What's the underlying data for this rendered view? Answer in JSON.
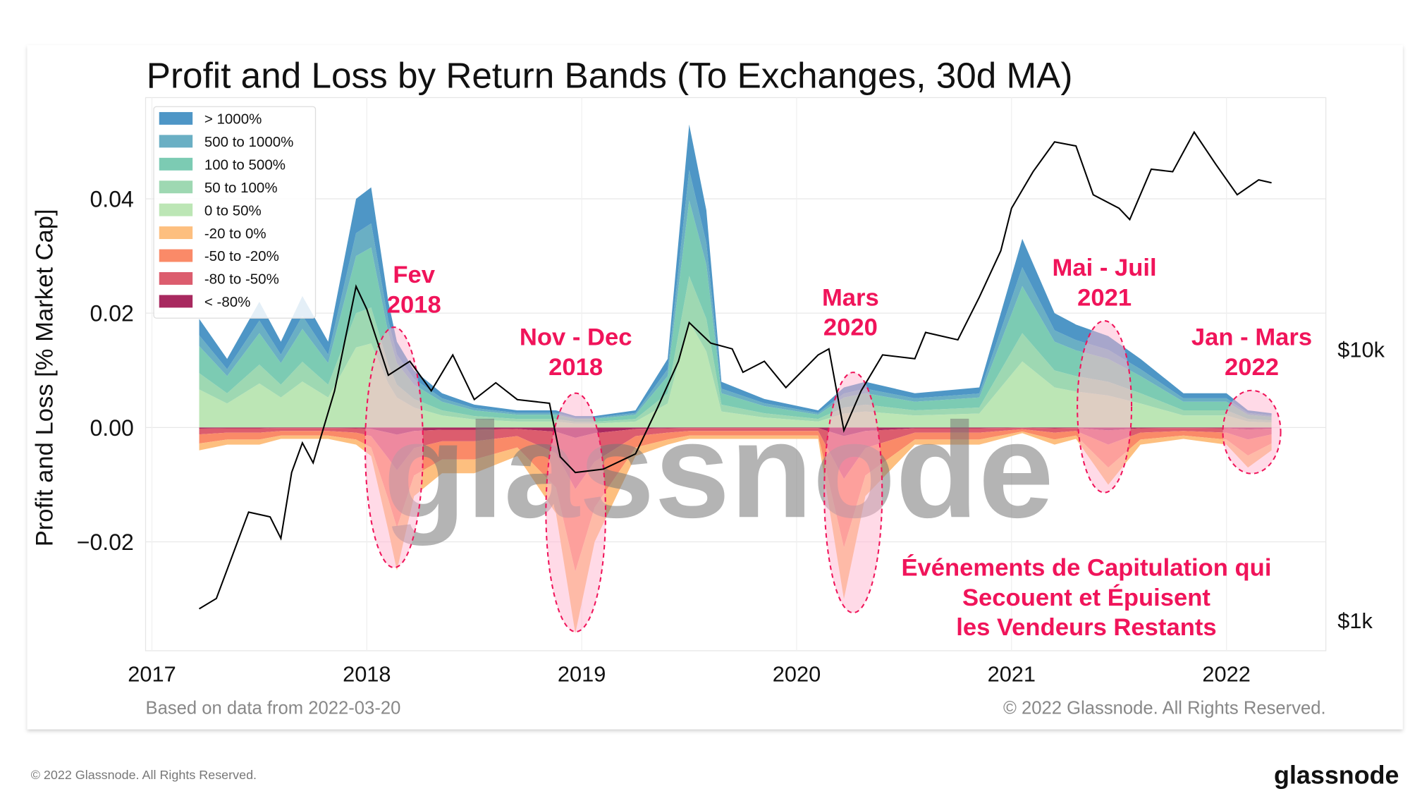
{
  "footer": {
    "copyright": "© 2022 Glassnode. All Rights Reserved.",
    "logo": "glassnode"
  },
  "chart_data": {
    "type": "area",
    "title": "Profit and Loss by Return Bands (To Exchanges, 30d MA)",
    "ylabel": "Profit and Loss [% Market Cap]",
    "ylim": [
      -0.04,
      0.057
    ],
    "yticks": [
      "0.04",
      "0.02",
      "0.00",
      "−0.02"
    ],
    "ytick_values": [
      0.04,
      0.02,
      0.0,
      -0.02
    ],
    "xticks": [
      "2017",
      "2018",
      "2019",
      "2020",
      "2021",
      "2022"
    ],
    "xtick_values": [
      2017,
      2018,
      2019,
      2020,
      2021,
      2022
    ],
    "xlim": [
      2016.97,
      2022.46
    ],
    "right_axis": {
      "scale": "log",
      "ticks": [
        "$10k",
        "$1k"
      ],
      "tick_values": [
        10000,
        1000
      ]
    },
    "grid": true,
    "legend_position": "top-left",
    "source_note": "Based on data from 2022-03-20",
    "copyright": "© 2022 Glassnode. All Rights Reserved.",
    "watermark": "glassnode",
    "dates": [
      2017.22,
      2017.35,
      2017.5,
      2017.6,
      2017.7,
      2017.82,
      2017.95,
      2018.02,
      2018.1,
      2018.14,
      2018.22,
      2018.35,
      2018.5,
      2018.7,
      2018.88,
      2018.97,
      2019.06,
      2019.25,
      2019.4,
      2019.5,
      2019.58,
      2019.65,
      2019.85,
      2020.1,
      2020.22,
      2020.32,
      2020.55,
      2020.85,
      2021.05,
      2021.2,
      2021.3,
      2021.45,
      2021.6,
      2021.8,
      2022.0,
      2022.1,
      2022.21
    ],
    "positive_total": [
      0.019,
      0.012,
      0.022,
      0.015,
      0.023,
      0.015,
      0.04,
      0.042,
      0.022,
      0.015,
      0.01,
      0.006,
      0.004,
      0.003,
      0.003,
      0.002,
      0.002,
      0.003,
      0.012,
      0.053,
      0.038,
      0.008,
      0.005,
      0.003,
      0.007,
      0.008,
      0.006,
      0.007,
      0.033,
      0.02,
      0.018,
      0.016,
      0.012,
      0.006,
      0.006,
      0.003,
      0.0025
    ],
    "negative_total": [
      -0.004,
      -0.003,
      -0.003,
      -0.002,
      -0.002,
      -0.002,
      -0.003,
      -0.005,
      -0.018,
      -0.025,
      -0.012,
      -0.008,
      -0.008,
      -0.005,
      -0.015,
      -0.036,
      -0.02,
      -0.005,
      -0.003,
      -0.002,
      -0.002,
      -0.002,
      -0.002,
      -0.002,
      -0.03,
      -0.012,
      -0.003,
      -0.003,
      -0.001,
      -0.003,
      -0.002,
      -0.01,
      -0.003,
      -0.002,
      -0.003,
      -0.007,
      -0.004
    ],
    "series": [
      {
        "name": "> 1000%",
        "sign": "positive",
        "share": 0.15,
        "color": "#4e96c6"
      },
      {
        "name": "500 to 1000%",
        "sign": "positive",
        "share": 0.1,
        "color": "#6aafc4"
      },
      {
        "name": "100 to 500%",
        "sign": "positive",
        "share": 0.25,
        "color": "#7ccbb3"
      },
      {
        "name": "50 to 100%",
        "sign": "positive",
        "share": 0.15,
        "color": "#9ed8b2"
      },
      {
        "name": "0 to 50%",
        "sign": "positive",
        "share": 0.35,
        "color": "#bce6b5"
      },
      {
        "name": "-20 to 0%",
        "sign": "negative",
        "share": 0.3,
        "color": "#fdbf7f"
      },
      {
        "name": "-50 to -20%",
        "sign": "negative",
        "share": 0.4,
        "color": "#fa8a68"
      },
      {
        "name": "-80 to -50%",
        "sign": "negative",
        "share": 0.25,
        "color": "#dc5d6e"
      },
      {
        "name": "< -80%",
        "sign": "negative",
        "share": 0.05,
        "color": "#a8295f"
      }
    ],
    "price": {
      "name": "BTC price",
      "color": "#000000",
      "dates": [
        2017.22,
        2017.3,
        2017.45,
        2017.55,
        2017.6,
        2017.65,
        2017.7,
        2017.75,
        2017.85,
        2017.95,
        2018.0,
        2018.1,
        2018.2,
        2018.3,
        2018.4,
        2018.5,
        2018.6,
        2018.7,
        2018.85,
        2018.9,
        2018.97,
        2019.1,
        2019.25,
        2019.35,
        2019.45,
        2019.5,
        2019.6,
        2019.7,
        2019.75,
        2019.85,
        2019.95,
        2020.1,
        2020.15,
        2020.22,
        2020.3,
        2020.4,
        2020.55,
        2020.6,
        2020.75,
        2020.85,
        2020.95,
        2021.0,
        2021.1,
        2021.2,
        2021.3,
        2021.38,
        2021.5,
        2021.55,
        2021.65,
        2021.75,
        2021.85,
        2021.95,
        2022.05,
        2022.15,
        2022.21
      ],
      "values": [
        1100,
        1200,
        2500,
        2400,
        2000,
        3500,
        4500,
        3800,
        7000,
        17000,
        14000,
        8000,
        9000,
        7000,
        9500,
        6500,
        7500,
        6500,
        6300,
        4000,
        3500,
        3600,
        4100,
        6000,
        9000,
        12500,
        10500,
        10000,
        8200,
        9000,
        7200,
        9500,
        10000,
        5000,
        7000,
        9500,
        9200,
        11500,
        10800,
        15500,
        23000,
        33000,
        45000,
        58000,
        56000,
        37000,
        33000,
        30000,
        46000,
        45000,
        63000,
        48000,
        37000,
        42000,
        41000
      ]
    },
    "annotations": [
      {
        "lines": [
          "Fev",
          "2018"
        ],
        "color": "#f0145a"
      },
      {
        "lines": [
          "Nov - Dec",
          "2018"
        ],
        "color": "#f0145a"
      },
      {
        "lines": [
          "Mars",
          "2020"
        ],
        "color": "#f0145a"
      },
      {
        "lines": [
          "Mai - Juil",
          "2021"
        ],
        "color": "#f0145a"
      },
      {
        "lines": [
          "Jan - Mars",
          "2022"
        ],
        "color": "#f0145a"
      },
      {
        "lines": [
          "Événements de Capitulation qui",
          "Secouent et Épuisent",
          "les Vendeurs Restants"
        ],
        "color": "#f0145a"
      }
    ]
  }
}
